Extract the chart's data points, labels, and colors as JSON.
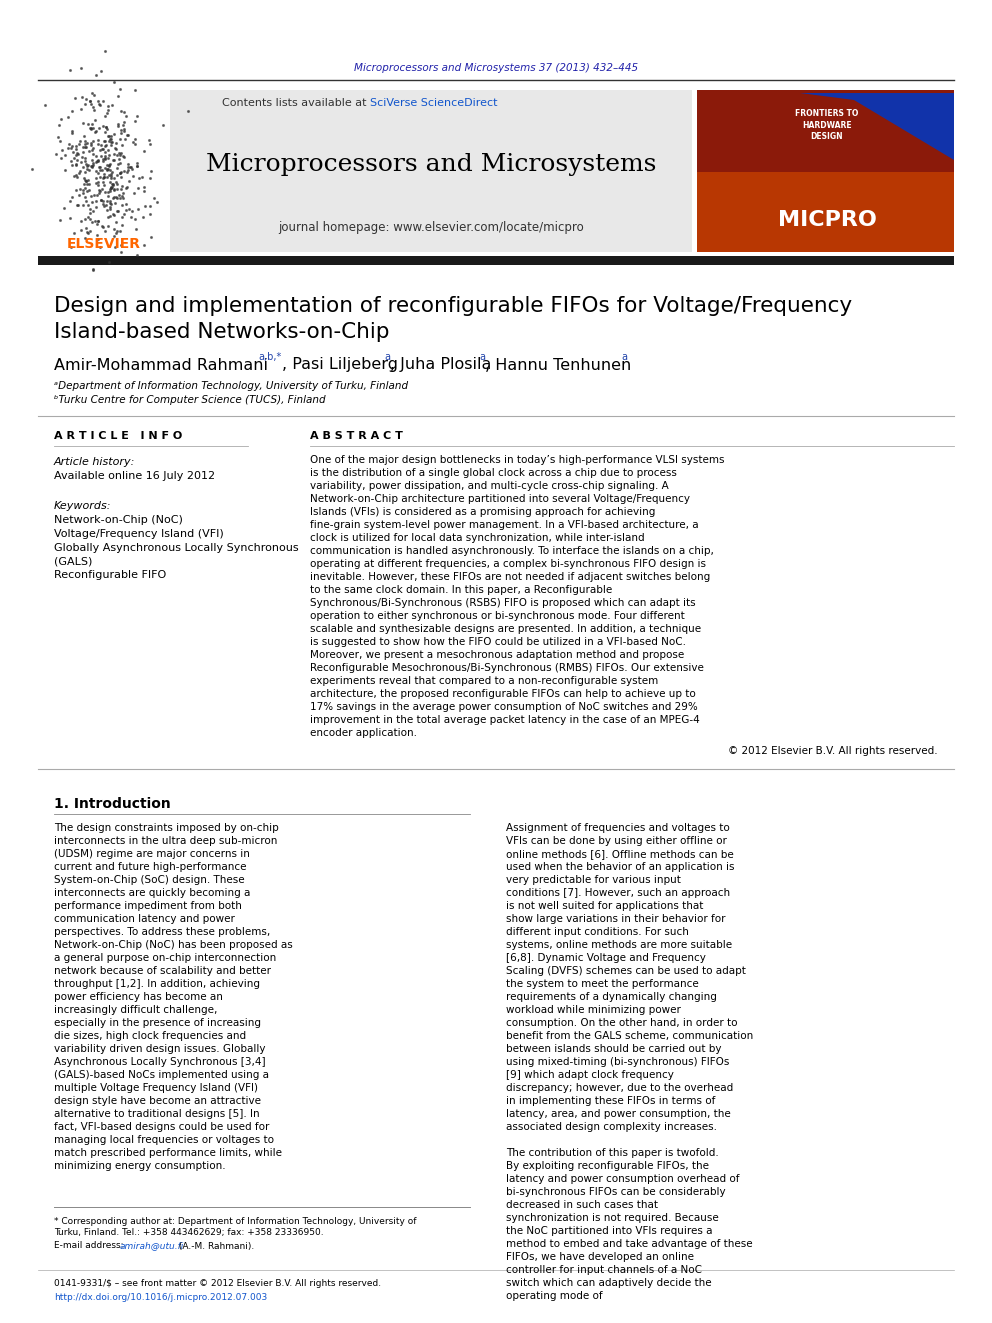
{
  "page_bg": "#ffffff",
  "top_journal_ref": "Microprocessors and Microsystems 37 (2013) 432–445",
  "top_journal_color": "#2222aa",
  "header_bg": "#e8e8e8",
  "header_contents_text": "Contents lists available at ",
  "header_sciverse": "SciVerse ScienceDirect",
  "header_sciverse_color": "#1155cc",
  "header_journal_title": "Microprocessors and Microsystems",
  "header_homepage_text": "journal homepage: www.elsevier.com/locate/micpro",
  "elsevier_text": "ELSEVIER",
  "elsevier_color": "#FF6600",
  "thick_bar_color": "#1a1a1a",
  "paper_title_line1": "Design and implementation of reconfigurable FIFOs for Voltage/Frequency",
  "paper_title_line2": "Island-based Networks-on-Chip",
  "paper_title_color": "#000000",
  "affil_a": "ᵃDepartment of Information Technology, University of Turku, Finland",
  "affil_b": "ᵇTurku Centre for Computer Science (TUCS), Finland",
  "article_info_title": "A R T I C L E   I N F O",
  "article_history_label": "Article history:",
  "article_history_date": "Available online 16 July 2012",
  "keywords_label": "Keywords:",
  "keyword1": "Network-on-Chip (NoC)",
  "keyword2": "Voltage/Frequency Island (VFI)",
  "keyword3": "Globally Asynchronous Locally Synchronous",
  "keyword3b": "(GALS)",
  "keyword4": "Reconfigurable FIFO",
  "abstract_title": "A B S T R A C T",
  "abstract_text": "One of the major design bottlenecks in today’s high-performance VLSI systems is the distribution of a single global clock across a chip due to process variability, power dissipation, and multi-cycle cross-chip signaling. A Network-on-Chip architecture partitioned into several Voltage/Frequency Islands (VFIs) is considered as a promising approach for achieving fine-grain system-level power management. In a VFI-based architecture, a clock is utilized for local data synchronization, while inter-island communication is handled asynchronously. To interface the islands on a chip, operating at different frequencies, a complex bi-synchronous FIFO design is inevitable. However, these FIFOs are not needed if adjacent switches belong to the same clock domain. In this paper, a Reconfigurable Synchronous/Bi-Synchronous (RSBS) FIFO is proposed which can adapt its operation to either synchronous or bi-synchronous mode. Four different scalable and synthesizable designs are presented. In addition, a technique is suggested to show how the FIFO could be utilized in a VFI-based NoC. Moreover, we present a mesochronous adaptation method and propose Reconfigurable Mesochronous/Bi-Synchronous (RMBS) FIFOs. Our extensive experiments reveal that compared to a non-reconfigurable system architecture, the proposed reconfigurable FIFOs can help to achieve up to 17% savings in the average power consumption of NoC switches and 29% improvement in the total average packet latency in the case of an MPEG-4 encoder application.",
  "copyright_text": "© 2012 Elsevier B.V. All rights reserved.",
  "intro_section_title": "1. Introduction",
  "intro_left_col": "The design constraints imposed by on-chip interconnects in the ultra deep sub-micron (UDSM) regime are major concerns in current and future high-performance System-on-Chip (SoC) design. These interconnects are quickly becoming a performance impediment from both communication latency and power perspectives. To address these problems, Network-on-Chip (NoC) has been proposed as a general purpose on-chip interconnection network because of scalability and better throughput [1,2]. In addition, achieving power efficiency has become an increasingly difficult challenge, especially in the presence of increasing die sizes, high clock frequencies and variability driven design issues. Globally Asynchronous Locally Synchronous [3,4] (GALS)-based NoCs implemented using a multiple Voltage Frequency Island (VFI) design style have become an attractive alternative to traditional designs [5]. In fact, VFI-based designs could be used for managing local frequencies or voltages to match prescribed performance limits, while minimizing energy consumption.",
  "intro_right_col": "Assignment of frequencies and voltages to VFIs can be done by using either offline or online methods [6]. Offline methods can be used when the behavior of an application is very predictable for various input conditions [7]. However, such an approach is not well suited for applications that show large variations in their behavior for different input conditions. For such systems, online methods are more suitable [6,8]. Dynamic Voltage and Frequency Scaling (DVFS) schemes can be used to adapt the system to meet the performance requirements of a dynamically changing workload while minimizing power consumption. On the other hand, in order to benefit from the GALS scheme, communication between islands should be carried out by using mixed-timing (bi-synchronous) FIFOs [9] which adapt clock frequency discrepancy; however, due to the overhead in implementing these FIFOs in terms of latency, area, and power consumption, the associated design complexity increases.\n\nThe contribution of this paper is twofold. By exploiting reconfigurable FIFOs, the latency and power consumption overhead of bi-synchronous FIFOs can be considerably decreased in such cases that synchronization is not required. Because the NoC partitioned into VFIs requires a method to embed and take advantage of these FIFOs, we have developed an online controller for input channels of a NoC switch which can adaptively decide the operating mode of",
  "footnote_star": "* Corresponding author at: Department of Information Technology, University of",
  "footnote_star2": "Turku, Finland. Tel.: +358 443462629; fax: +358 23336950.",
  "footnote_email_label": "E-mail address: ",
  "footnote_email": "amirah@utu.fi",
  "footnote_email_suffix": " (A.-M. Rahmani).",
  "footer_issn": "0141-9331/$ – see front matter © 2012 Elsevier B.V. All rights reserved.",
  "footer_doi": "http://dx.doi.org/10.1016/j.micpro.2012.07.003",
  "footer_doi_color": "#1155cc"
}
